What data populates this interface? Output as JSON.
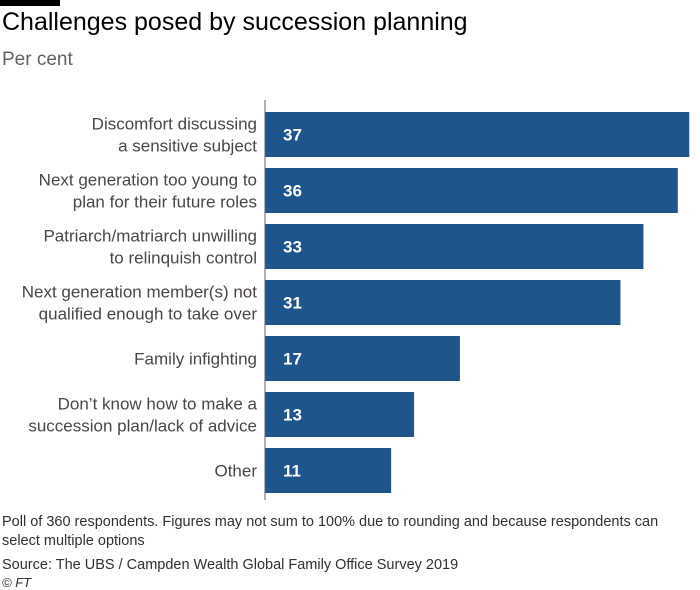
{
  "header": {
    "title": "Challenges posed by succession planning",
    "subtitle": "Per cent"
  },
  "chart_data": {
    "type": "bar",
    "orientation": "horizontal",
    "title": "Challenges posed by succession planning",
    "subtitle": "Per cent",
    "categories": [
      [
        "Discomfort discussing",
        "a sensitive subject"
      ],
      [
        "Next generation too young to",
        "plan for their future roles"
      ],
      [
        "Patriarch/matriarch unwilling",
        "to relinquish control"
      ],
      [
        "Next generation member(s) not",
        "qualified enough to take over"
      ],
      [
        "Family infighting"
      ],
      [
        "Don’t know how to make a",
        "succession plan/lack of advice"
      ],
      [
        "Other"
      ]
    ],
    "values": [
      37,
      36,
      33,
      31,
      17,
      13,
      11
    ],
    "xlim": [
      0,
      37.5
    ],
    "bar_color": "#1e558c",
    "axis_color": "#66605c",
    "label_color": "#ffffff",
    "grid": false,
    "data_labels": "inside-start"
  },
  "footer": {
    "notes": "Poll of 360 respondents. Figures may not sum to 100% due to rounding and because respondents can select multiple options",
    "source": "Source: The UBS / Campden Wealth Global Family Office Survey 2019",
    "credit": "© FT"
  }
}
